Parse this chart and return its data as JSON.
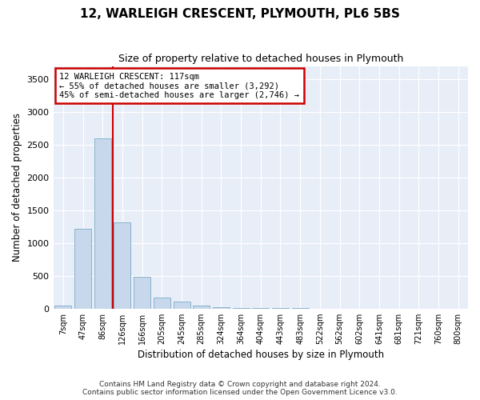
{
  "title": "12, WARLEIGH CRESCENT, PLYMOUTH, PL6 5BS",
  "subtitle": "Size of property relative to detached houses in Plymouth",
  "xlabel": "Distribution of detached houses by size in Plymouth",
  "ylabel": "Number of detached properties",
  "footer_line1": "Contains HM Land Registry data © Crown copyright and database right 2024.",
  "footer_line2": "Contains public sector information licensed under the Open Government Licence v3.0.",
  "bar_color": "#c8d8ec",
  "bar_edge_color": "#7aaac8",
  "background_color": "#e8eef8",
  "grid_color": "#ffffff",
  "annotation_text": "12 WARLEIGH CRESCENT: 117sqm\n← 55% of detached houses are smaller (3,292)\n45% of semi-detached houses are larger (2,746) →",
  "vline_color": "#cc0000",
  "vline_index": 2.5,
  "categories": [
    "7sqm",
    "47sqm",
    "86sqm",
    "126sqm",
    "166sqm",
    "205sqm",
    "245sqm",
    "285sqm",
    "324sqm",
    "364sqm",
    "404sqm",
    "443sqm",
    "483sqm",
    "522sqm",
    "562sqm",
    "602sqm",
    "641sqm",
    "681sqm",
    "721sqm",
    "760sqm",
    "800sqm"
  ],
  "values": [
    50,
    1220,
    2600,
    1320,
    490,
    165,
    105,
    50,
    20,
    10,
    8,
    5,
    3,
    1,
    1,
    0,
    0,
    0,
    0,
    0,
    0
  ],
  "ylim": [
    0,
    3700
  ],
  "yticks": [
    0,
    500,
    1000,
    1500,
    2000,
    2500,
    3000,
    3500
  ]
}
